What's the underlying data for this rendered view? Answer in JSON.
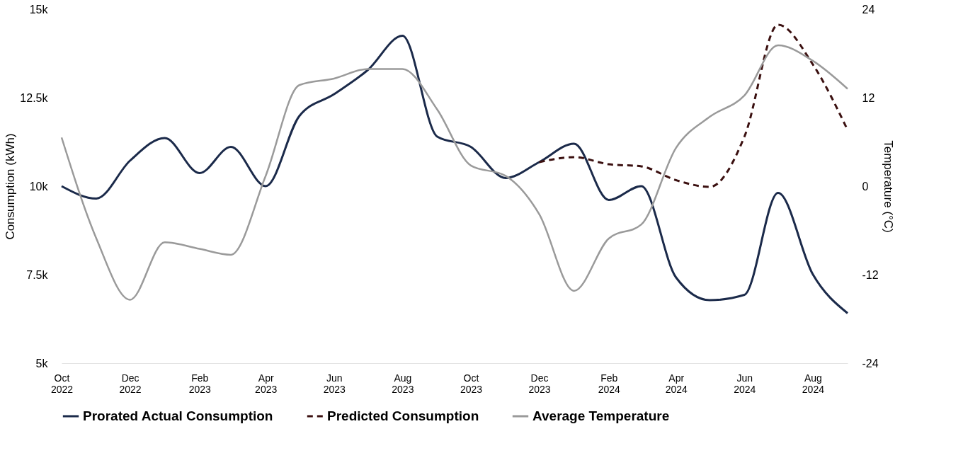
{
  "chart_data": {
    "type": "line",
    "x": [
      "2022-10",
      "2022-11",
      "2022-12",
      "2023-01",
      "2023-02",
      "2023-03",
      "2023-04",
      "2023-05",
      "2023-06",
      "2023-07",
      "2023-08",
      "2023-09",
      "2023-10",
      "2023-11",
      "2023-12",
      "2024-01",
      "2024-02",
      "2024-03",
      "2024-04",
      "2024-05",
      "2024-06",
      "2024-07",
      "2024-08",
      "2024-09"
    ],
    "series": [
      {
        "name": "Prorated Actual Consumption",
        "color": "#1b2a4a",
        "line_style": "solid",
        "values": [
          10000,
          9650,
          10720,
          11360,
          10370,
          11110,
          10000,
          11980,
          12600,
          13280,
          14250,
          11400,
          11110,
          10230,
          10680,
          11200,
          9610,
          10000,
          7420,
          6780,
          6930,
          9810,
          7510,
          6410
        ]
      },
      {
        "name": "Predicted Consumption",
        "color": "#3b1010",
        "line_style": "dashed",
        "values": [
          null,
          null,
          null,
          null,
          null,
          null,
          null,
          null,
          null,
          null,
          null,
          null,
          null,
          null,
          10680,
          10820,
          10620,
          10560,
          10170,
          9980,
          11400,
          14560,
          13440,
          11590
        ]
      },
      {
        "name": "Average Temperature",
        "color": "#9a9a9a",
        "line_style": "solid",
        "axis": "y2",
        "values": [
          6.6,
          -7.1,
          -15.4,
          -7.6,
          -8.5,
          -9.3,
          1.4,
          13.7,
          14.6,
          15.9,
          15.9,
          10.4,
          2.8,
          1.4,
          -3.8,
          -14.2,
          -7.1,
          -5.2,
          5.2,
          9.4,
          12.3,
          19.1,
          17.0,
          13.2
        ]
      }
    ],
    "xlim": [
      "2022-10",
      "2024-09"
    ],
    "ylabel": "Consumption (kWh)",
    "y2label": "Temperature (°C)",
    "xticks": [
      {
        "value": "2022-10",
        "label": "Oct 2022"
      },
      {
        "value": "2022-12",
        "label": "Dec 2022"
      },
      {
        "value": "2023-02",
        "label": "Feb 2023"
      },
      {
        "value": "2023-04",
        "label": "Apr 2023"
      },
      {
        "value": "2023-06",
        "label": "Jun 2023"
      },
      {
        "value": "2023-08",
        "label": "Aug 2023"
      },
      {
        "value": "2023-10",
        "label": "Oct 2023"
      },
      {
        "value": "2023-12",
        "label": "Dec 2023"
      },
      {
        "value": "2024-02",
        "label": "Feb 2024"
      },
      {
        "value": "2024-04",
        "label": "Apr 2024"
      },
      {
        "value": "2024-06",
        "label": "Jun 2024"
      },
      {
        "value": "2024-08",
        "label": "Aug 2024"
      }
    ],
    "ylim": [
      5000,
      15000
    ],
    "yticks": [
      {
        "value": 5000,
        "label": "5k"
      },
      {
        "value": 7500,
        "label": "7.5k"
      },
      {
        "value": 10000,
        "label": "10k"
      },
      {
        "value": 12500,
        "label": "12.5k"
      },
      {
        "value": 15000,
        "label": "15k"
      }
    ],
    "y2lim": [
      -24,
      24
    ],
    "y2ticks": [
      -24,
      -12,
      0,
      12,
      24
    ],
    "grid": false,
    "legend": "bottom"
  }
}
